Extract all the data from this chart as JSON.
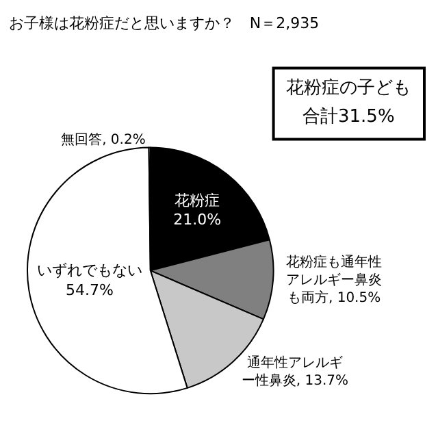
{
  "chart_data": {
    "type": "pie",
    "title": "お子様は花粉症だと思いますか？　N＝2,935",
    "categories": [
      "花粉症",
      "花粉症も通年性アレルギー鼻炎も両方",
      "通年性アレルギー性鼻炎",
      "いずれでもない",
      "無回答"
    ],
    "values": [
      21.0,
      10.5,
      13.7,
      54.7,
      0.2
    ],
    "value_labels": [
      "21.0%",
      "10.5%",
      "13.7%",
      "54.7%",
      "0.2%"
    ],
    "colors": [
      "#000000",
      "#808080",
      "#c8c8c8",
      "#ffffff",
      "#ffffff"
    ],
    "annotations": [
      "花粉症の子ども",
      "合計31.5%"
    ],
    "legend": false
  }
}
